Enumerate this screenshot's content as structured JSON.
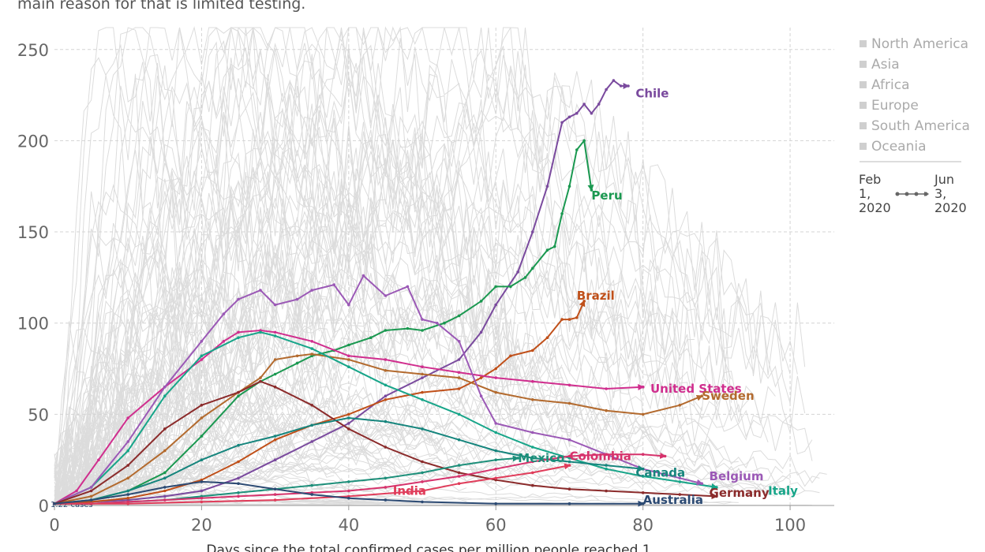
{
  "subtitle": "main reason for that is limited testing.",
  "chart_data": {
    "type": "line",
    "xlabel": "Days since the total confirmed cases per million people reached 1",
    "xlim": [
      0,
      106
    ],
    "ylim": [
      0,
      262
    ],
    "xticks": [
      0,
      20,
      40,
      60,
      80,
      100
    ],
    "yticks": [
      0,
      50,
      100,
      150,
      200,
      250
    ],
    "grid": true,
    "origin_note": "1.22 cases",
    "legend": {
      "placement": "right",
      "items": [
        "North America",
        "Asia",
        "Africa",
        "Europe",
        "South America",
        "Oceania"
      ]
    },
    "timeline": {
      "start": [
        "Feb",
        "1,",
        "2020"
      ],
      "end": [
        "Jun",
        "3,",
        "2020"
      ]
    },
    "series": [
      {
        "name": "Chile",
        "color": "#7a4a9e",
        "label_at": [
          79,
          226
        ],
        "x": [
          0,
          5,
          10,
          15,
          20,
          25,
          30,
          35,
          40,
          45,
          50,
          55,
          58,
          60,
          63,
          65,
          67,
          69,
          70,
          71,
          72,
          73,
          74,
          75,
          76,
          77,
          78
        ],
        "y": [
          1,
          2,
          3,
          5,
          8,
          15,
          25,
          35,
          45,
          60,
          70,
          80,
          95,
          110,
          128,
          150,
          175,
          210,
          213,
          215,
          220,
          215,
          220,
          228,
          233,
          230,
          230
        ]
      },
      {
        "name": "Peru",
        "color": "#1a9850",
        "label_at": [
          73,
          170
        ],
        "x": [
          0,
          5,
          10,
          15,
          20,
          25,
          28,
          30,
          33,
          35,
          38,
          40,
          43,
          45,
          48,
          50,
          53,
          55,
          58,
          60,
          62,
          64,
          65,
          67,
          68,
          69,
          70,
          71,
          72,
          73
        ],
        "y": [
          1,
          3,
          8,
          18,
          38,
          60,
          68,
          72,
          78,
          82,
          85,
          88,
          92,
          96,
          97,
          96,
          100,
          104,
          112,
          120,
          120,
          125,
          130,
          140,
          142,
          160,
          175,
          195,
          200,
          173
        ]
      },
      {
        "name": "Brazil",
        "color": "#c0501a",
        "label_at": [
          71,
          115
        ],
        "x": [
          0,
          5,
          10,
          15,
          20,
          25,
          30,
          35,
          40,
          45,
          50,
          55,
          58,
          60,
          62,
          65,
          67,
          69,
          70,
          71,
          72
        ],
        "y": [
          1,
          2,
          4,
          8,
          14,
          24,
          36,
          44,
          50,
          58,
          62,
          64,
          70,
          75,
          82,
          85,
          92,
          102,
          102,
          103,
          112
        ]
      },
      {
        "name": "United States",
        "color": "#d02e8e",
        "label_at": [
          81,
          64
        ],
        "x": [
          0,
          3,
          6,
          10,
          15,
          20,
          23,
          25,
          28,
          30,
          35,
          40,
          45,
          50,
          55,
          60,
          65,
          70,
          75,
          80
        ],
        "y": [
          1,
          8,
          25,
          48,
          65,
          80,
          90,
          95,
          96,
          95,
          90,
          82,
          80,
          76,
          73,
          70,
          68,
          66,
          64,
          65
        ]
      },
      {
        "name": "Sweden",
        "color": "#b36a2e",
        "label_at": [
          88,
          60
        ],
        "x": [
          0,
          5,
          10,
          15,
          20,
          25,
          28,
          30,
          33,
          35,
          40,
          45,
          50,
          55,
          60,
          65,
          70,
          75,
          80,
          85,
          88
        ],
        "y": [
          1,
          5,
          15,
          30,
          48,
          62,
          70,
          80,
          82,
          83,
          80,
          74,
          72,
          70,
          62,
          58,
          56,
          52,
          50,
          55,
          60
        ]
      },
      {
        "name": "Italy",
        "color": "#17a589",
        "label_at": [
          97,
          8
        ],
        "x": [
          0,
          5,
          10,
          15,
          20,
          25,
          28,
          30,
          35,
          40,
          45,
          50,
          55,
          60,
          65,
          70,
          75,
          80,
          85,
          90
        ],
        "y": [
          1,
          10,
          30,
          60,
          82,
          92,
          95,
          93,
          86,
          76,
          66,
          58,
          50,
          40,
          32,
          26,
          20,
          16,
          13,
          10
        ]
      },
      {
        "name": "Belgium",
        "color": "#9b59b6",
        "label_at": [
          89,
          16
        ],
        "x": [
          0,
          5,
          10,
          15,
          20,
          23,
          25,
          28,
          30,
          33,
          35,
          38,
          40,
          42,
          45,
          48,
          50,
          52,
          55,
          58,
          60,
          65,
          70,
          75,
          80,
          85,
          88
        ],
        "y": [
          1,
          10,
          35,
          65,
          90,
          105,
          113,
          118,
          110,
          113,
          118,
          121,
          110,
          126,
          115,
          120,
          102,
          100,
          90,
          60,
          45,
          40,
          36,
          28,
          20,
          15,
          12
        ]
      },
      {
        "name": "Germany",
        "color": "#8b2b2b",
        "label_at": [
          89,
          7
        ],
        "x": [
          0,
          5,
          10,
          15,
          20,
          25,
          28,
          30,
          35,
          40,
          45,
          50,
          55,
          60,
          65,
          70,
          75,
          80,
          85,
          90
        ],
        "y": [
          1,
          8,
          22,
          42,
          55,
          62,
          68,
          65,
          55,
          42,
          32,
          24,
          18,
          14,
          11,
          9,
          8,
          7,
          6,
          5
        ]
      },
      {
        "name": "Canada",
        "color": "#16857d",
        "label_at": [
          79,
          18
        ],
        "x": [
          0,
          5,
          10,
          15,
          20,
          25,
          30,
          35,
          40,
          45,
          50,
          55,
          60,
          65,
          70,
          75,
          80
        ],
        "y": [
          1,
          3,
          8,
          15,
          25,
          33,
          38,
          44,
          48,
          46,
          42,
          36,
          30,
          26,
          24,
          22,
          20
        ]
      },
      {
        "name": "Mexico",
        "color": "#1d8f7a",
        "label_at": [
          63,
          26
        ],
        "x": [
          0,
          5,
          10,
          15,
          20,
          25,
          30,
          35,
          40,
          45,
          50,
          55,
          60,
          63
        ],
        "y": [
          1,
          1,
          2,
          3,
          5,
          7,
          9,
          11,
          13,
          15,
          18,
          22,
          25,
          26
        ]
      },
      {
        "name": "Colombia",
        "color": "#d6336c",
        "label_at": [
          70,
          27
        ],
        "x": [
          0,
          5,
          10,
          15,
          20,
          25,
          30,
          35,
          40,
          45,
          50,
          55,
          60,
          65,
          70,
          75,
          80,
          83
        ],
        "y": [
          1,
          1,
          2,
          3,
          4,
          5,
          6,
          7,
          8,
          10,
          13,
          16,
          20,
          24,
          27,
          28,
          28,
          27
        ]
      },
      {
        "name": "India",
        "color": "#e03c5a",
        "label_at": [
          46,
          8
        ],
        "x": [
          0,
          10,
          20,
          30,
          40,
          50,
          55,
          60,
          65,
          70
        ],
        "y": [
          1,
          1,
          2,
          3,
          5,
          8,
          12,
          15,
          18,
          22
        ]
      },
      {
        "name": "Australia",
        "color": "#2c4a73",
        "label_at": [
          80,
          3
        ],
        "x": [
          0,
          5,
          10,
          15,
          20,
          25,
          30,
          35,
          40,
          45,
          50,
          60,
          70,
          80
        ],
        "y": [
          1,
          3,
          6,
          10,
          13,
          12,
          9,
          6,
          4,
          3,
          2,
          1,
          1,
          1
        ]
      }
    ]
  }
}
